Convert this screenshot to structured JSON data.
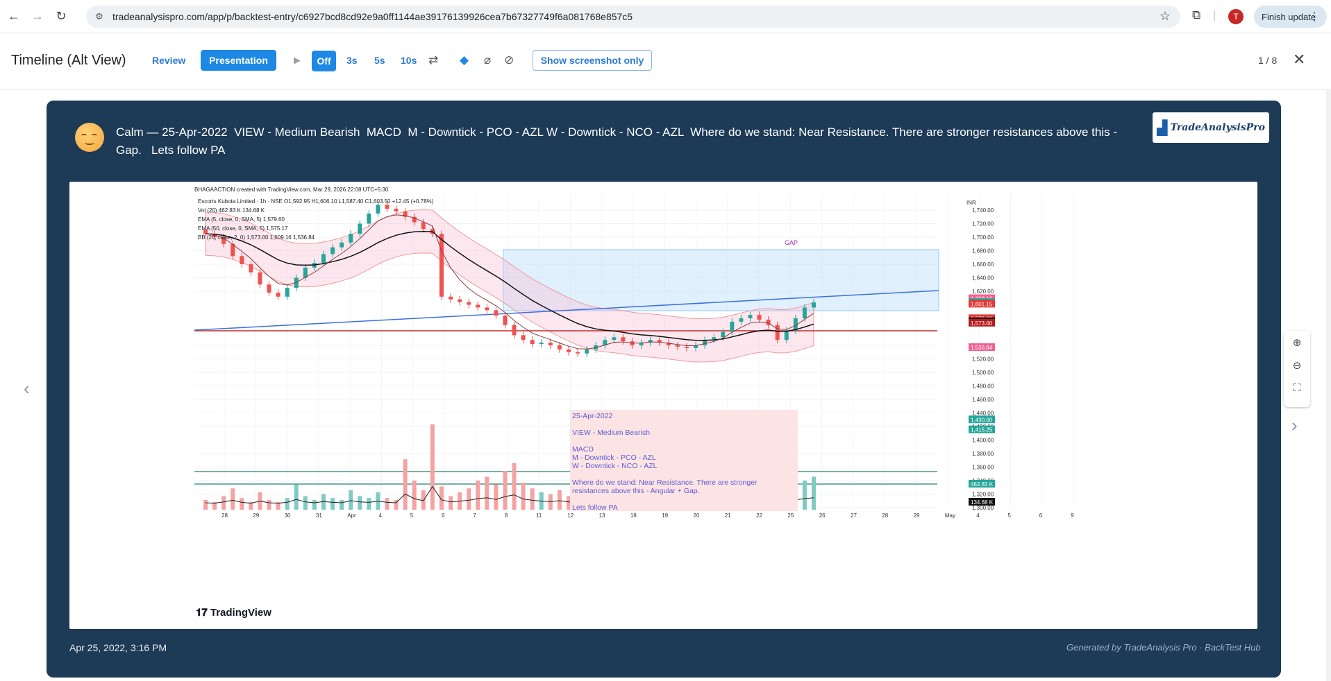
{
  "browser": {
    "url": "tradeanalysispro.com/app/p/backtest-entry/c6927bcd8cd92e9a0ff1144ae39176139926cea7b67327749f6a081768e857c5",
    "profile_initial": "T",
    "finish_update_label": "Finish update"
  },
  "toolbar": {
    "title": "Timeline (Alt View)",
    "review_label": "Review",
    "presentation_label": "Presentation",
    "off_label": "Off",
    "speed_3s": "3s",
    "speed_5s": "5s",
    "speed_10s": "10s",
    "screenshot_only_label": "Show screenshot only",
    "pager": "1 / 8"
  },
  "entry": {
    "headline": "Calm — 25-Apr-2022  VIEW - Medium Bearish  MACD  M - Downtick - PCO - AZL W - Downtick - NCO - AZL  Where do we stand: Near Resistance. There are stronger resistances above this -\nGap.   Lets follow PA",
    "logo_text": "TradeAnalysisPro",
    "timestamp": "Apr 25, 2022, 3:16 PM",
    "generated_by": "Generated by TradeAnalysis Pro · BackTest Hub"
  },
  "chart_header": {
    "created": "BHAGAACTION created with TradingView.com, Mar 29, 2026 22:08 UTC+5:30",
    "symbol": "Escorts Kubota Limited · 1h · NSE  O1,592.95  H1,606.10  L1,587.40  C1,603.50  +12.45 (+0.78%)",
    "vol": "Vol (20)  462.83 K  134.68 K",
    "ema5": "EMA (5, close, 0, SMA, 5)  1,579.60",
    "ema50": "EMA (50, close, 0, SMA, 5)  1,575.17",
    "bb": "BB (20, close, 2, 0)  1,573.00  1,609.16  1,536.84"
  },
  "annotation": {
    "gap": "GAP",
    "date": "25-Apr-2022",
    "view": "VIEW - Medium Bearish",
    "macd": "MACD",
    "m": "M - Downtick - PCO - AZL",
    "w": "W - Downtick - NCO - AZL",
    "stand1": "Where do we stand: Near Resistance. There are stronger",
    "stand2": "resistances above this - Angular + Gap.",
    "follow": "Lets follow PA"
  },
  "tv_brand": "TradingView",
  "chart_data": {
    "type": "candlestick",
    "currency": "INR",
    "ylim": [
      1300,
      1750
    ],
    "y_ticks": [
      1740,
      1720,
      1700,
      1680,
      1660,
      1640,
      1620,
      1540,
      1520,
      1500,
      1480,
      1460,
      1440,
      1420,
      1400,
      1380,
      1360,
      1340,
      1320,
      1300
    ],
    "x_ticks": [
      "28",
      "29",
      "30",
      "31",
      "Apr",
      "4",
      "5",
      "6",
      "7",
      "8",
      "11",
      "12",
      "13",
      "18",
      "19",
      "20",
      "21",
      "22",
      "25",
      "26",
      "27",
      "28",
      "29",
      "May",
      "4",
      "5",
      "6",
      "9"
    ],
    "price_labels": [
      {
        "value": "1,609.16",
        "color": "#f06292"
      },
      {
        "value": "1,603.50",
        "color": "#26a69a"
      },
      {
        "value": "1,601.15",
        "color": "#e53935"
      },
      {
        "value": "1,579.60",
        "color": "#e53935"
      },
      {
        "value": "1,575.17",
        "color": "#111111"
      },
      {
        "value": "1,573.00",
        "color": "#b71c1c"
      },
      {
        "value": "1,536.84",
        "color": "#f06292"
      },
      {
        "value": "1,430.00",
        "color": "#26a69a"
      },
      {
        "value": "1,415.25",
        "color": "#26a69a"
      }
    ],
    "volume_labels": [
      {
        "value": "462.83 K",
        "color": "#26a69a"
      },
      {
        "value": "134.68 K",
        "color": "#111111"
      }
    ],
    "close_prices": [
      1705,
      1700,
      1690,
      1672,
      1660,
      1648,
      1630,
      1618,
      1612,
      1625,
      1640,
      1655,
      1662,
      1675,
      1685,
      1692,
      1705,
      1720,
      1735,
      1748,
      1742,
      1738,
      1730,
      1722,
      1712,
      1705,
      1612,
      1608,
      1604,
      1600,
      1596,
      1592,
      1584,
      1570,
      1555,
      1548,
      1542,
      1544,
      1540,
      1534,
      1530,
      1528,
      1534,
      1540,
      1548,
      1552,
      1546,
      1540,
      1544,
      1548,
      1544,
      1540,
      1538,
      1536,
      1540,
      1548,
      1552,
      1560,
      1575,
      1580,
      1585,
      1578,
      1570,
      1548,
      1562,
      1580,
      1596,
      1603.5
    ],
    "volumes": [
      0.1,
      0.08,
      0.14,
      0.22,
      0.12,
      0.08,
      0.18,
      0.1,
      0.08,
      0.12,
      0.26,
      0.14,
      0.1,
      0.16,
      0.12,
      0.1,
      0.2,
      0.14,
      0.12,
      0.18,
      0.12,
      0.1,
      0.52,
      0.3,
      0.2,
      0.88,
      0.24,
      0.14,
      0.18,
      0.22,
      0.3,
      0.34,
      0.26,
      0.4,
      0.48,
      0.28,
      0.22,
      0.18,
      0.16,
      0.2,
      0.14,
      0.12,
      0.1,
      0.18,
      0.14,
      0.12,
      0.16,
      0.12,
      0.1,
      0.14,
      0.12,
      0.1,
      0.08,
      0.1,
      0.12,
      0.1,
      0.08,
      0.1,
      0.16,
      0.14,
      0.12,
      0.1,
      0.14,
      0.18,
      0.22,
      0.24,
      0.3,
      0.34
    ]
  }
}
